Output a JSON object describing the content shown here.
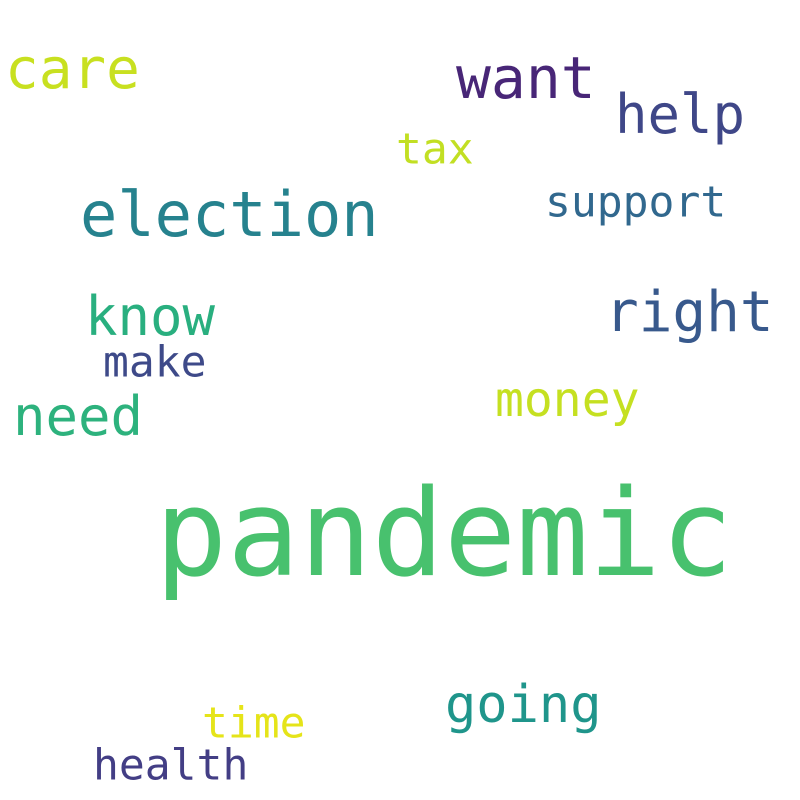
{
  "words": {
    "pandemic": {
      "text": "pandemic",
      "color": "#48c16e"
    },
    "election": {
      "text": "election",
      "color": "#26828e"
    },
    "want": {
      "text": "want",
      "color": "#482677"
    },
    "right": {
      "text": "right",
      "color": "#38598c"
    },
    "care": {
      "text": "care",
      "color": "#c8e020"
    },
    "help": {
      "text": "help",
      "color": "#3f4788"
    },
    "know": {
      "text": "know",
      "color": "#29af7f"
    },
    "need": {
      "text": "need",
      "color": "#2db27d"
    },
    "going": {
      "text": "going",
      "color": "#1f958b"
    },
    "money": {
      "text": "money",
      "color": "#c5e021"
    },
    "support": {
      "text": "support",
      "color": "#31688e"
    },
    "make": {
      "text": "make",
      "color": "#3e4a89"
    },
    "tax": {
      "text": "tax",
      "color": "#c2df23"
    },
    "time": {
      "text": "time",
      "color": "#e5e419"
    },
    "health": {
      "text": "health",
      "color": "#433e85"
    }
  }
}
